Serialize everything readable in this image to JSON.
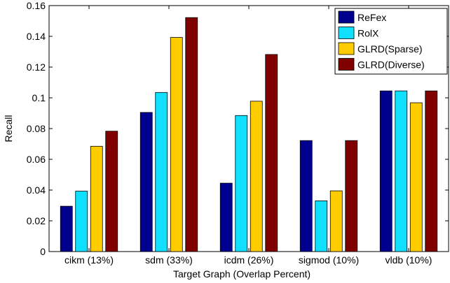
{
  "chart_data": {
    "type": "bar",
    "title": "",
    "xlabel": "Target Graph (Overlap Percent)",
    "ylabel": "Recall",
    "ylim": [
      0,
      0.16
    ],
    "yticks": [
      0,
      0.02,
      0.04,
      0.06,
      0.08,
      0.1,
      0.12,
      0.14,
      0.16
    ],
    "ytick_labels": [
      "0",
      "0.02",
      "0.04",
      "0.06",
      "0.08",
      "0.1",
      "0.12",
      "0.14",
      "0.16"
    ],
    "categories": [
      "cikm (13%)",
      "sdm (33%)",
      "icdm (26%)",
      "sigmod (10%)",
      "vldb (10%)"
    ],
    "series": [
      {
        "name": "ReFex",
        "color": "#00008f",
        "values": [
          0.0295,
          0.0905,
          0.0445,
          0.0722,
          0.1045
        ]
      },
      {
        "name": "RolX",
        "color": "#10e0ff",
        "values": [
          0.0393,
          0.1035,
          0.0885,
          0.033,
          0.1045
        ]
      },
      {
        "name": "GLRD(Sparse)",
        "color": "#ffcc00",
        "values": [
          0.0685,
          0.1393,
          0.0978,
          0.0395,
          0.0968
        ]
      },
      {
        "name": "GLRD(Diverse)",
        "color": "#800000",
        "values": [
          0.0783,
          0.1522,
          0.1282,
          0.0722,
          0.1045
        ]
      }
    ],
    "legend_position": "top-right",
    "grid": false
  }
}
